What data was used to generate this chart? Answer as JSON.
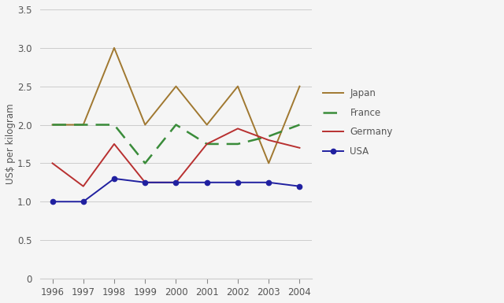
{
  "years": [
    1996,
    1997,
    1998,
    1999,
    2000,
    2001,
    2002,
    2003,
    2004
  ],
  "japan": [
    2.0,
    2.0,
    3.0,
    2.0,
    2.5,
    2.0,
    2.5,
    1.5,
    2.5
  ],
  "france": [
    2.0,
    2.0,
    2.0,
    1.5,
    2.0,
    1.75,
    1.75,
    1.85,
    2.0
  ],
  "germany": [
    1.5,
    1.2,
    1.75,
    1.25,
    1.25,
    1.75,
    1.95,
    1.8,
    1.7
  ],
  "usa": [
    1.0,
    1.0,
    1.3,
    1.25,
    1.25,
    1.25,
    1.25,
    1.25,
    1.2
  ],
  "japan_color": "#a07830",
  "france_color": "#3a8c3a",
  "germany_color": "#b83030",
  "usa_color": "#2020a0",
  "ylabel": "US$ per kilogram",
  "ylim": [
    0,
    3.5
  ],
  "yticks": [
    0,
    0.5,
    1.0,
    1.5,
    2.0,
    2.5,
    3.0,
    3.5
  ],
  "ytick_labels": [
    "0",
    "0.5",
    "1.0",
    "1.5",
    "2.0",
    "2.5",
    "3.0",
    "3.5"
  ],
  "background_color": "#f5f5f5",
  "plot_bg_color": "#f5f5f5",
  "grid_color": "#cccccc",
  "legend_labels": [
    "Japan",
    "France",
    "Germany",
    "USA"
  ],
  "tick_color": "#888888",
  "label_color": "#555555"
}
